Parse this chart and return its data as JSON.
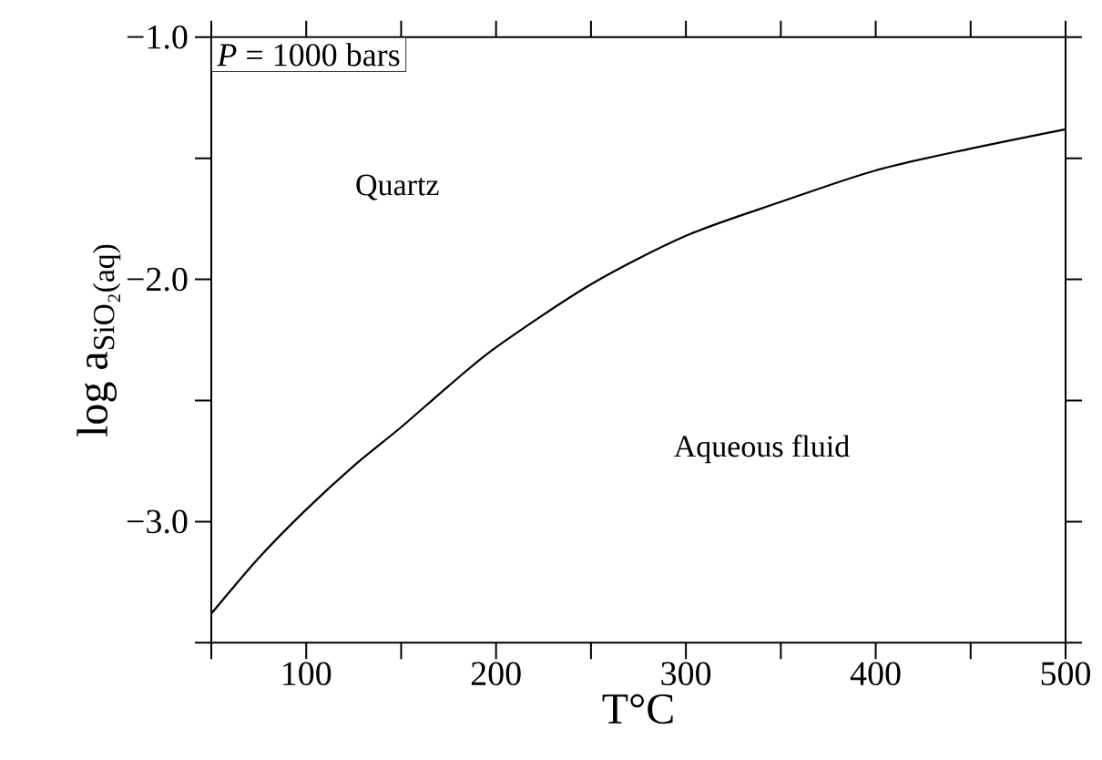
{
  "chart_data": {
    "type": "line",
    "xlabel": "T°C",
    "ylabel": "log a$_{SiO₂(aq)}$",
    "annotations": [
      "*P* = 1000 bars",
      "Quartz",
      "Aqueous fluid"
    ],
    "x": [
      50,
      75,
      100,
      125,
      150,
      175,
      200,
      250,
      300,
      350,
      400,
      450,
      500
    ],
    "series": [
      {
        "color": "#000000",
        "values": [
          -3.38,
          -3.15,
          -2.95,
          -2.77,
          -2.61,
          -2.44,
          -2.28,
          -2.02,
          -1.82,
          -1.68,
          -1.55,
          -1.46,
          -1.38
        ]
      }
    ],
    "xlim": [
      50,
      500
    ],
    "xticks": [
      {
        "value": 50,
        "label": null
      },
      100,
      {
        "value": 150,
        "label": null
      },
      200,
      {
        "value": 250,
        "label": null
      },
      300,
      {
        "value": 350,
        "label": null
      },
      400,
      {
        "value": 450,
        "label": null
      },
      500
    ],
    "ylim": [
      -3.5,
      -1.0
    ],
    "yticks": [
      {
        "value": -1.0,
        "label": "−1.0"
      },
      {
        "value": -1.5,
        "label": null
      },
      {
        "value": -2.0,
        "label": "−2.0"
      },
      {
        "value": -2.5,
        "label": null
      },
      {
        "value": -3.0,
        "label": "−3.0"
      },
      {
        "value": -3.5,
        "label": null
      }
    ],
    "grid": false,
    "marker": "none",
    "line_style": "solid"
  }
}
